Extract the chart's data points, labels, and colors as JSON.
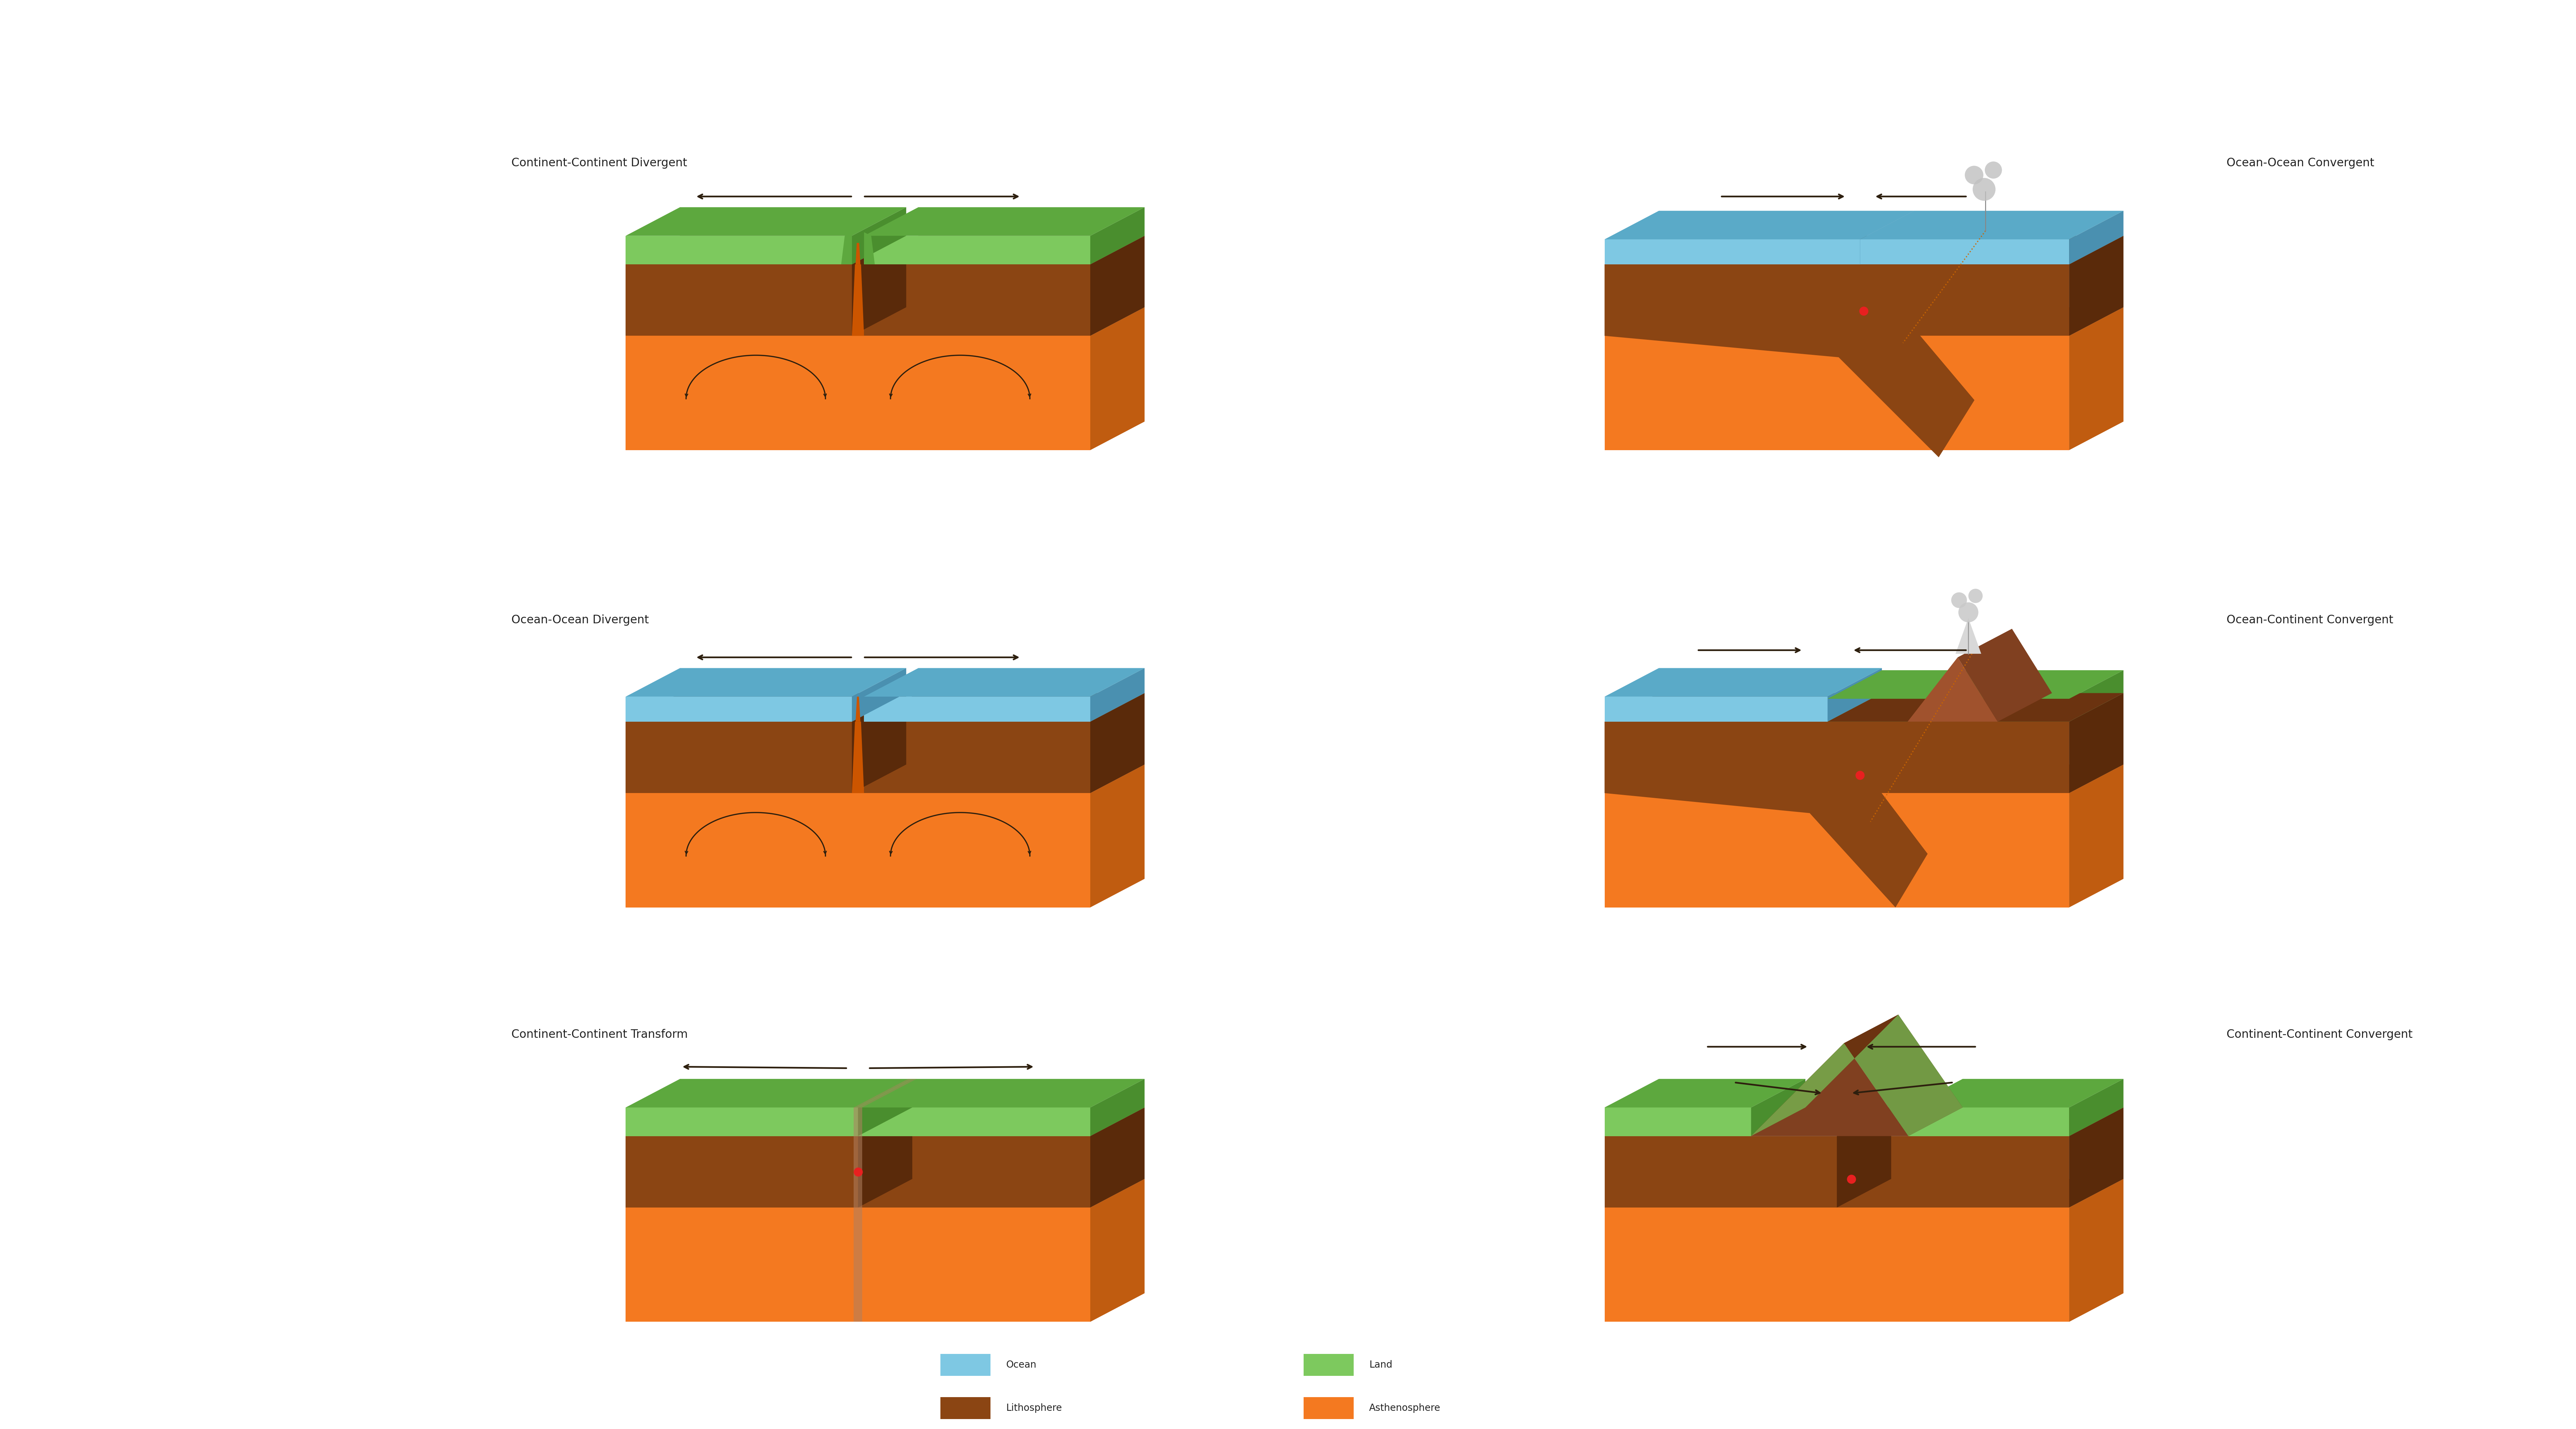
{
  "bg_color": "#ffffff",
  "text_color": "#222222",
  "c_asth": "#F47920",
  "c_asth_top": "#D96A15",
  "c_asth_side": "#C05C10",
  "c_lith": "#8B4513",
  "c_lith_top": "#6B3310",
  "c_lith_side": "#5A2A0A",
  "c_lith_mid": "#A0522D",
  "c_lith_mid_top": "#804020",
  "c_lith_mid_side": "#6A3518",
  "c_ocean": "#7EC8E3",
  "c_ocean_top": "#5AAAC8",
  "c_ocean_side": "#4A90B0",
  "c_land": "#7DC95E",
  "c_land_top": "#5DA83E",
  "c_land_side": "#4A8E2E",
  "c_arrow": "#2D1F0E",
  "c_red": "#E82020",
  "c_magma": "#CC5500",
  "c_volcano": "#D8D8D8",
  "c_smoke": "#AAAAAA",
  "c_fault": "#B08060",
  "labels": {
    "p1": "Continent-Continent Divergent",
    "p2": "Ocean-Ocean Convergent",
    "p3": "Ocean-Ocean Divergent",
    "p4": "Ocean-Continent Convergent",
    "p5": "Continent-Continent Transform",
    "p6": "Continent-Continent Convergent"
  },
  "legend_labels": [
    "Ocean",
    "Land",
    "Lithosphere",
    "Asthenosphere"
  ],
  "legend_colors": [
    "#7EC8E3",
    "#7DC95E",
    "#8B4513",
    "#F47920"
  ],
  "lfs": 24,
  "tfs": 20,
  "SKX": 0.38,
  "SKY": 0.2
}
